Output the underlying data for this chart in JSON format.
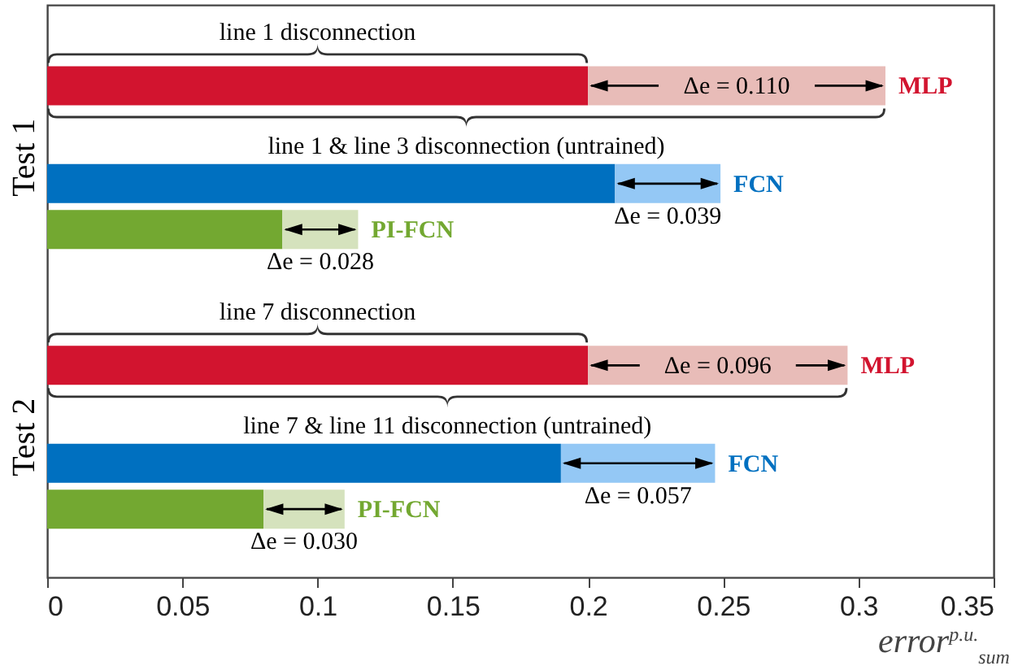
{
  "chart_data": {
    "type": "bar",
    "orientation": "horizontal",
    "stacked": true,
    "categories": [
      null,
      null,
      null,
      null,
      null,
      null
    ],
    "series": [
      {
        "colors": [
          "#d2142f",
          "#0070c0",
          "#73a831",
          "#d2142f",
          "#0070c0",
          "#73a831"
        ],
        "values": [
          0.2,
          0.21,
          0.087,
          0.2,
          0.19,
          0.08
        ]
      },
      {
        "colors": [
          "#e8bcb8",
          "#94c8f5",
          "#d5e2bd",
          "#e8bcb8",
          "#94c8f5",
          "#d5e2bd"
        ],
        "values": [
          0.11,
          0.039,
          0.028,
          0.096,
          0.057,
          0.03
        ],
        "value_labels": [
          "Δe = 0.110",
          "Δe = 0.039",
          "Δe = 0.028",
          "Δe = 0.096",
          "Δe = 0.057",
          "Δe = 0.030"
        ]
      }
    ],
    "xlim": [
      0,
      0.35
    ],
    "xticks": [
      0,
      0.05,
      0.1,
      0.15,
      0.2,
      0.25,
      0.3,
      0.35
    ],
    "xlabel": "error$^{p.u.}$$_{sum}$",
    "annotations": [
      "line 1 disconnection",
      "line 1 & line 3 disconnection (untrained)",
      "line 7 disconnection",
      "line 7 & line 11 disconnection (untrained)",
      "Test 1",
      "Test 2",
      {
        "text": "MLP",
        "x": 0.31
      },
      {
        "text": "FCN",
        "x": 0.249
      },
      {
        "text": "PI-FCN",
        "x": 0.115
      },
      {
        "text": "MLP",
        "x": 0.296
      },
      {
        "text": "FCN",
        "x": 0.247
      },
      {
        "text": "PI-FCN",
        "x": 0.11
      }
    ]
  }
}
